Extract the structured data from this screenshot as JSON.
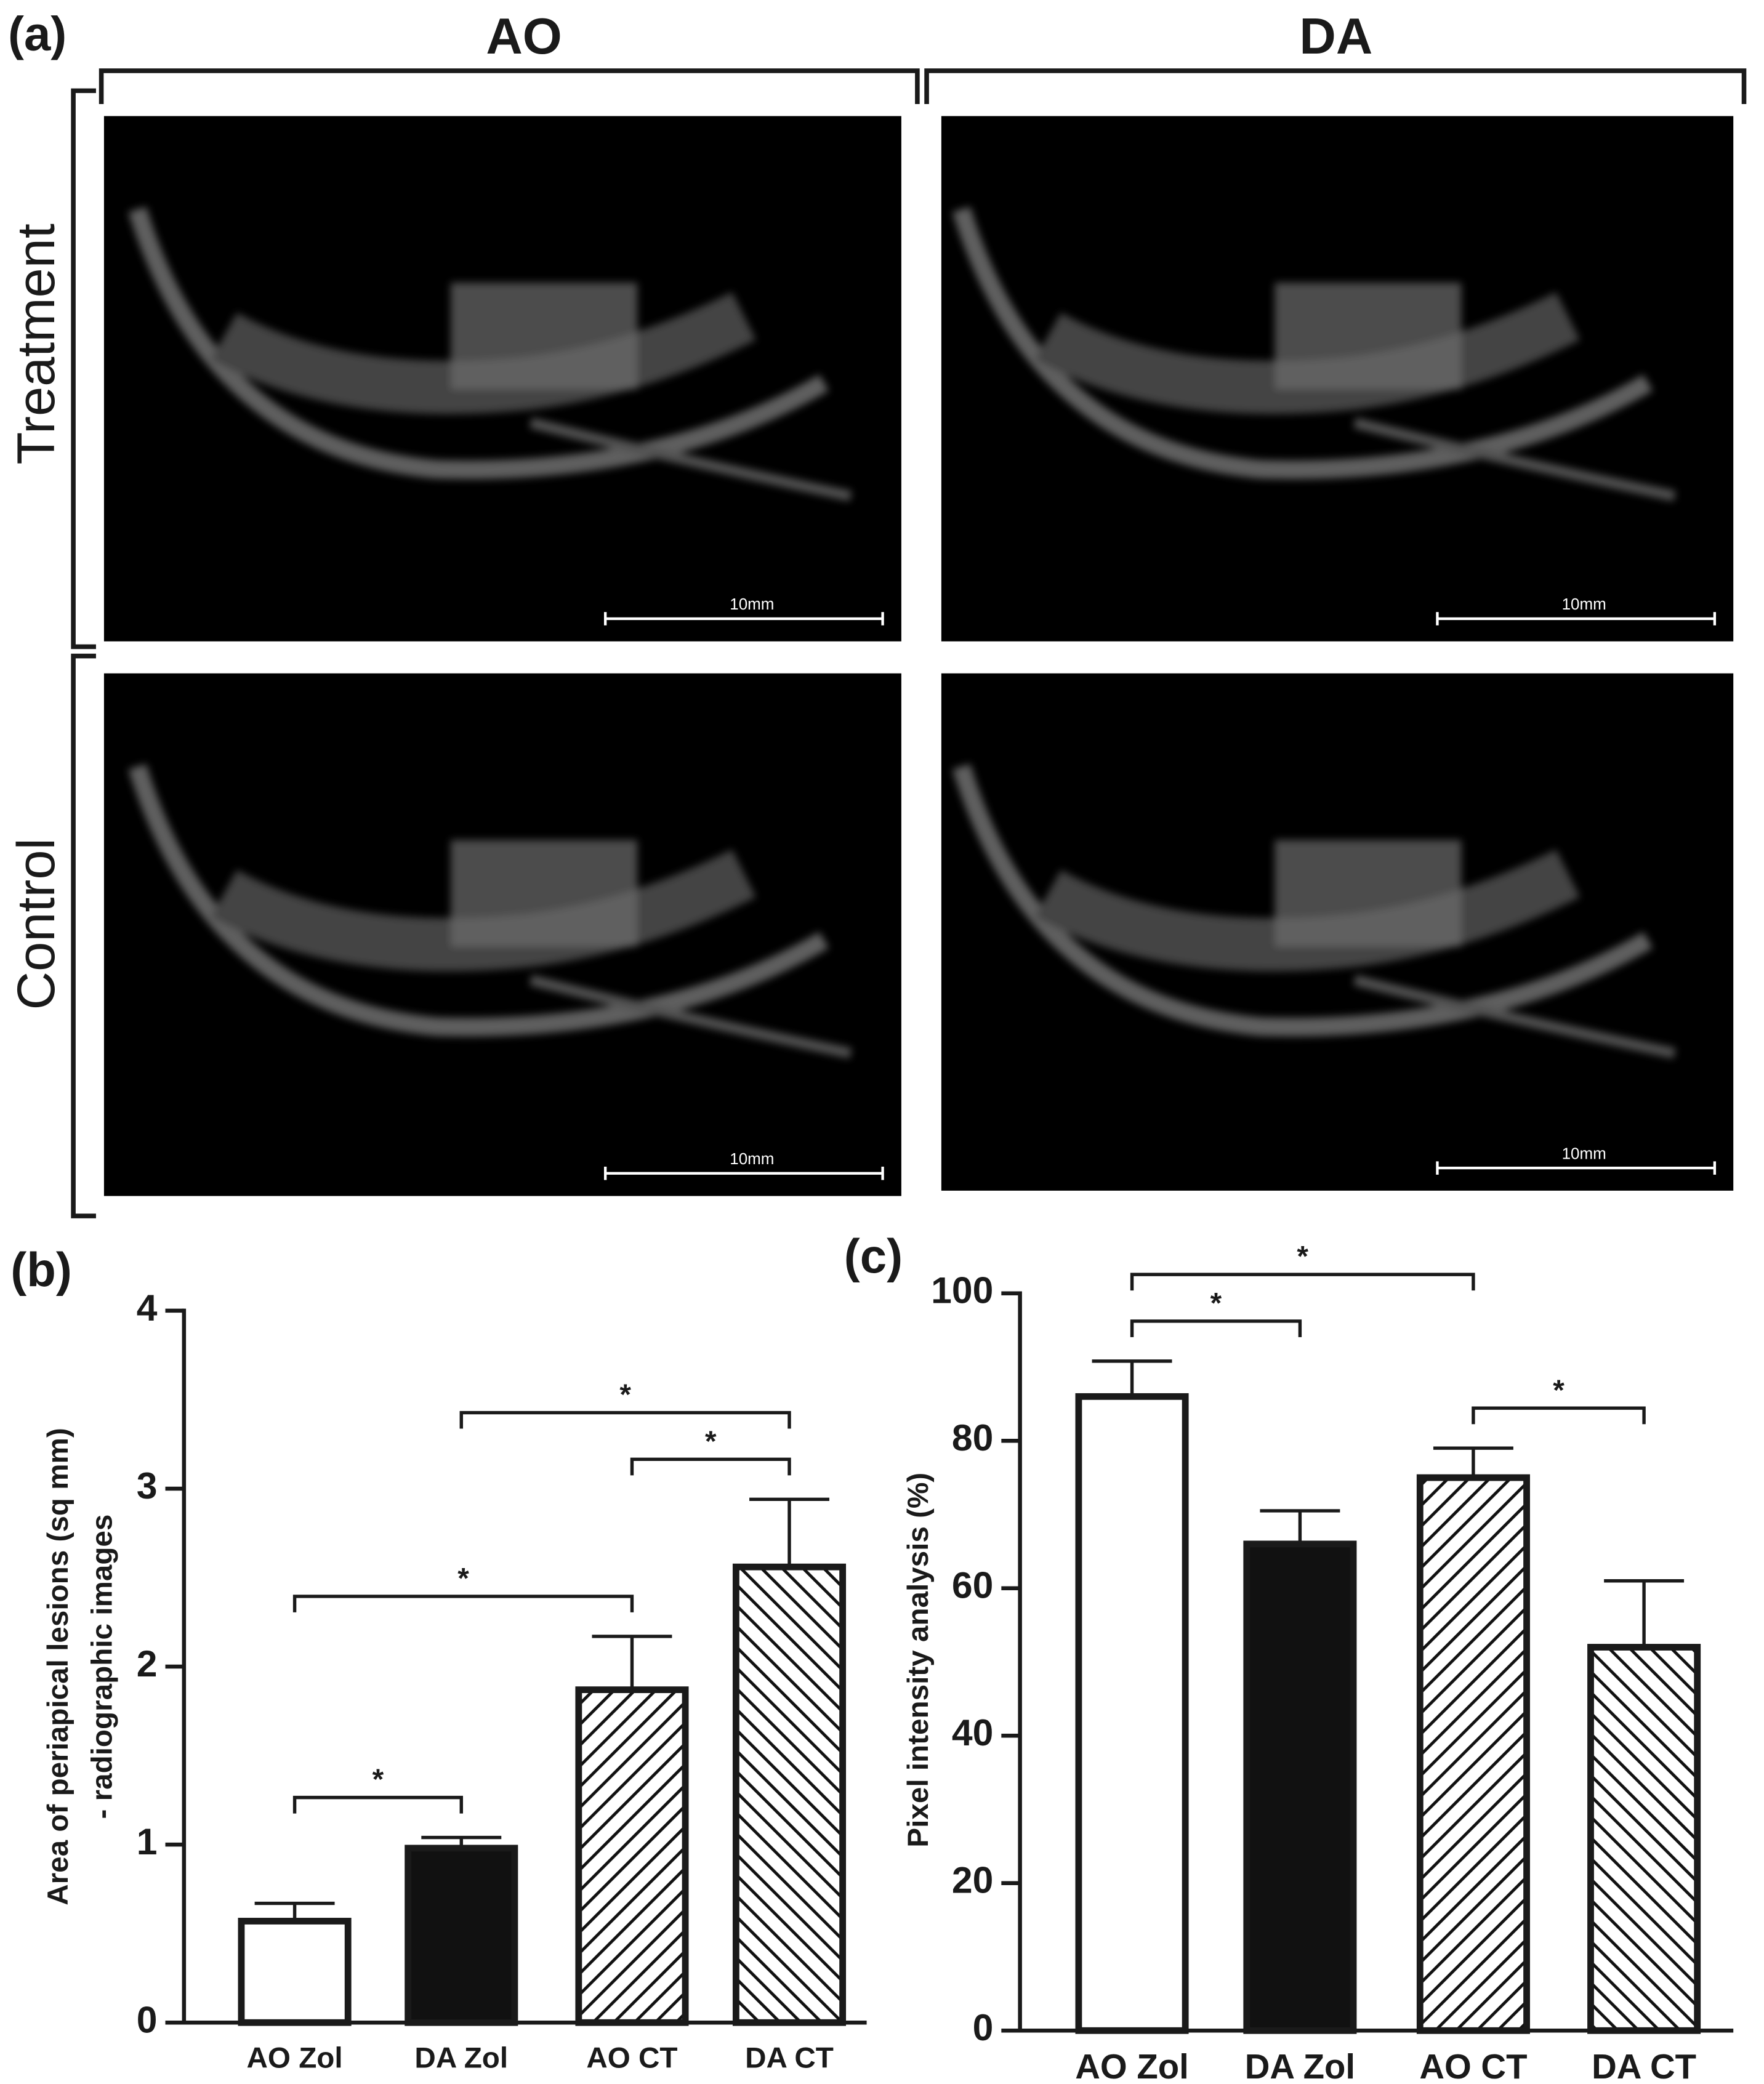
{
  "panel_a": {
    "label": "(a)",
    "columns": [
      "AO",
      "DA"
    ],
    "rows": [
      "Treatment",
      "Control"
    ],
    "scale_bar": "10mm"
  },
  "chart_data": [
    {
      "type": "bar",
      "panel_label": "(b)",
      "ylabel": [
        "Area of periapical lesions (sq mm)",
        "- radiographic images"
      ],
      "categories": [
        "AO Zol",
        "DA Zol",
        "AO CT",
        "DA CT"
      ],
      "values": [
        0.57,
        0.98,
        1.87,
        2.56
      ],
      "errors": [
        0.1,
        0.06,
        0.3,
        0.38
      ],
      "patterns": [
        "none",
        "solid",
        "diagonal-up",
        "diagonal-down"
      ],
      "ylim": [
        0,
        4
      ],
      "yticks": [
        0,
        1,
        2,
        3,
        4
      ],
      "comparisons": [
        {
          "pair": [
            0,
            1
          ],
          "label": "*"
        },
        {
          "pair": [
            0,
            2
          ],
          "label": "*"
        },
        {
          "pair": [
            2,
            3
          ],
          "label": "*"
        },
        {
          "pair": [
            1,
            3
          ],
          "label": "*"
        }
      ]
    },
    {
      "type": "bar",
      "panel_label": "(c)",
      "ylabel": [
        "Pixel intensity analysis (%)"
      ],
      "categories": [
        "AO Zol",
        "DA Zol",
        "AO CT",
        "DA CT"
      ],
      "values": [
        86,
        66,
        75,
        52
      ],
      "errors": [
        4.8,
        4.5,
        4,
        9
      ],
      "patterns": [
        "none",
        "solid",
        "diagonal-up",
        "diagonal-down"
      ],
      "ylim": [
        0,
        100
      ],
      "yticks": [
        0,
        20,
        40,
        60,
        80,
        100
      ],
      "comparisons": [
        {
          "pair": [
            0,
            1
          ],
          "label": "*"
        },
        {
          "pair": [
            2,
            3
          ],
          "label": "*"
        },
        {
          "pair": [
            0,
            2
          ],
          "label": "*"
        }
      ]
    }
  ]
}
